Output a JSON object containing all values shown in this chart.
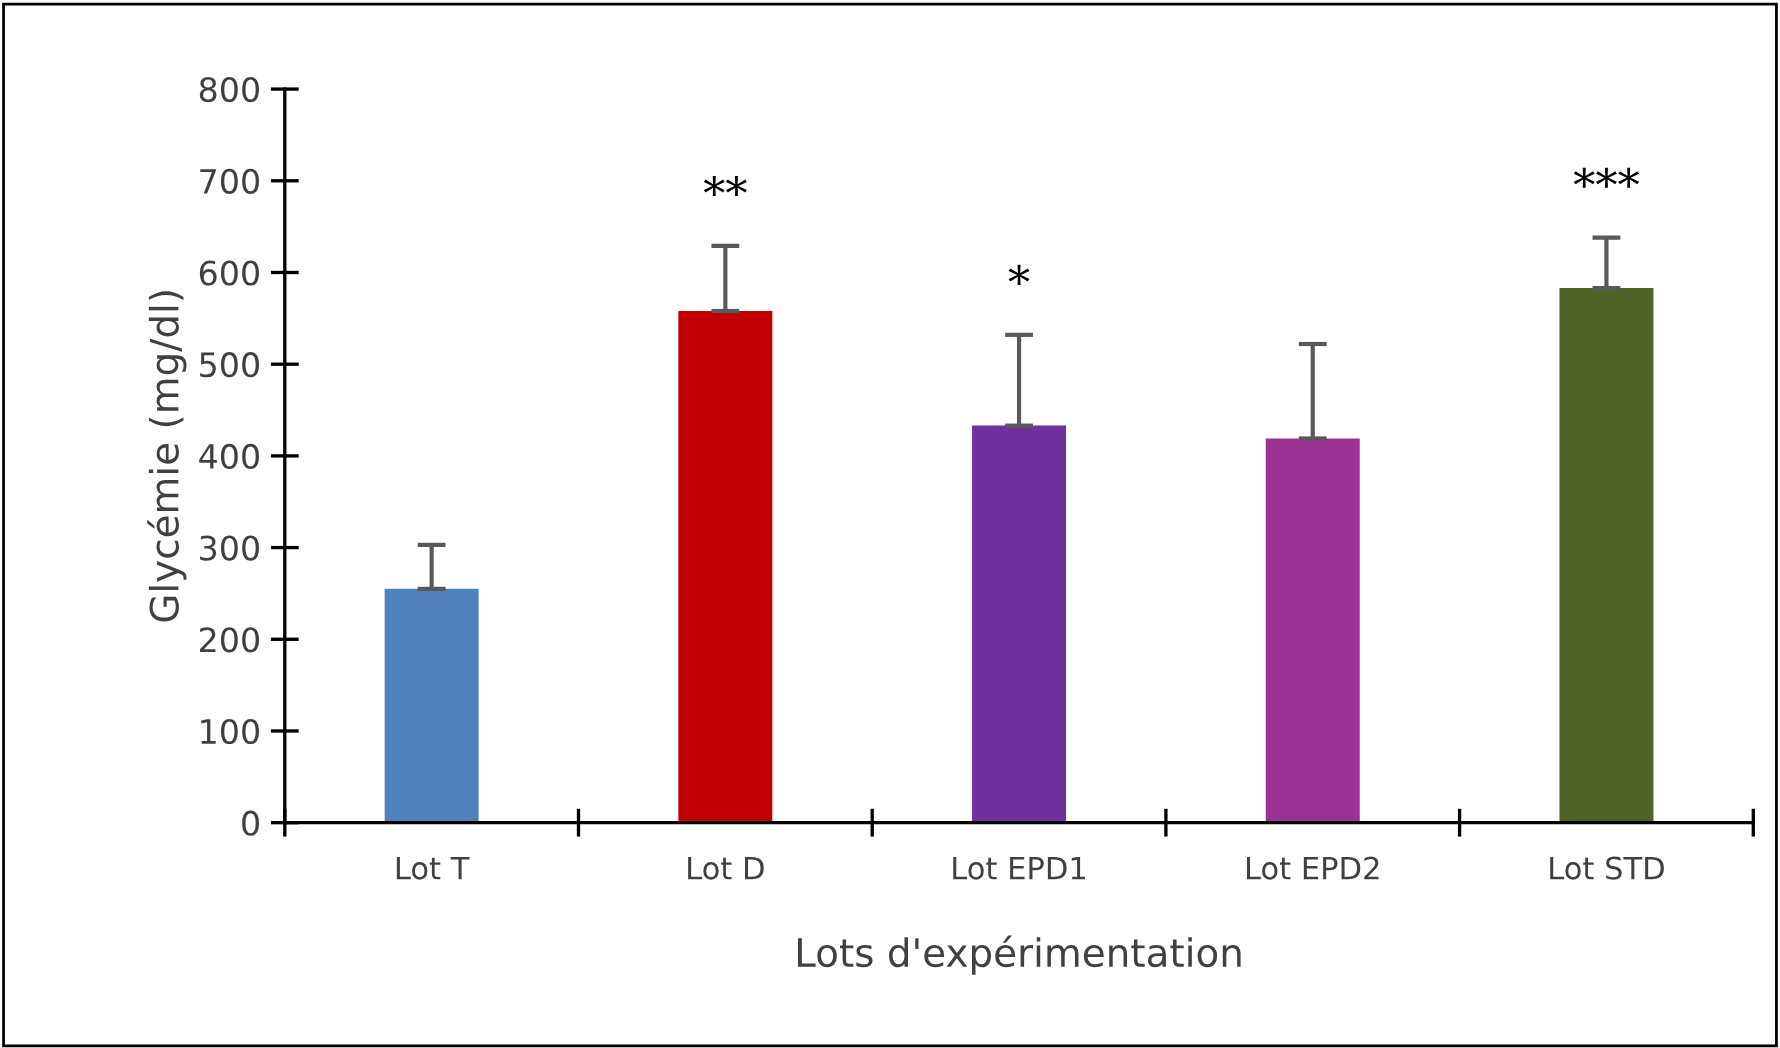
{
  "chart_data": {
    "type": "bar",
    "xlabel": "Lots d'expérimentation",
    "ylabel": "Glycémie (mg/dl)",
    "categories": [
      "Lot T",
      "Lot D",
      "Lot EPD1",
      "Lot EPD2",
      "Lot STD"
    ],
    "values": [
      255,
      558,
      433,
      419,
      583
    ],
    "colors": [
      "#4f81bd",
      "#c00000",
      "#7030a0",
      "#9b3192",
      "#4f6228"
    ],
    "errors": [
      [
        255,
        303
      ],
      [
        558,
        629
      ],
      [
        433,
        532
      ],
      [
        419,
        522
      ],
      [
        583,
        638
      ]
    ],
    "value_labels": [
      null,
      "**",
      "*",
      null,
      "***"
    ],
    "ylim": [
      0,
      800
    ],
    "yticks": [
      0,
      100,
      200,
      300,
      400,
      500,
      600,
      700,
      800
    ],
    "grid": false,
    "legend": false
  }
}
